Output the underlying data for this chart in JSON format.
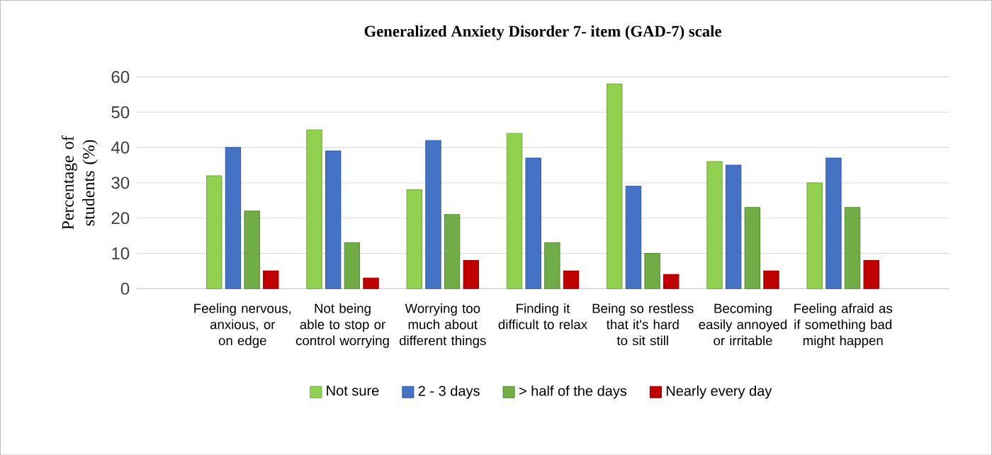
{
  "chart_data": {
    "type": "bar",
    "title": "Generalized Anxiety Disorder 7- item (GAD-7) scale",
    "ylabel": "Percentage of students (%)",
    "categories": [
      "Feeling nervous, anxious, or on edge",
      "Not being able to stop or control worrying",
      "Worrying too much about different things",
      "Finding it difficult to relax",
      "Being so restless that it's hard to sit still",
      "Becoming easily annoyed or irritable",
      "Feeling afraid as if something bad might happen"
    ],
    "series": [
      {
        "name": "Not sure",
        "color": "#92d050",
        "values": [
          32,
          45,
          28,
          44,
          58,
          36,
          30
        ]
      },
      {
        "name": "2 - 3 days",
        "color": "#4472c4",
        "values": [
          40,
          39,
          42,
          37,
          29,
          35,
          37
        ]
      },
      {
        "name": "> half of the days",
        "color": "#70ad47",
        "values": [
          22,
          13,
          21,
          13,
          10,
          23,
          23
        ]
      },
      {
        "name": "Nearly every day",
        "color": "#c00000",
        "values": [
          5,
          3,
          8,
          5,
          4,
          5,
          8
        ]
      }
    ],
    "ylim": [
      0,
      60
    ],
    "yticks": [
      0,
      10,
      20,
      30,
      40,
      50,
      60
    ],
    "grid": "y",
    "legend": "bottom"
  }
}
